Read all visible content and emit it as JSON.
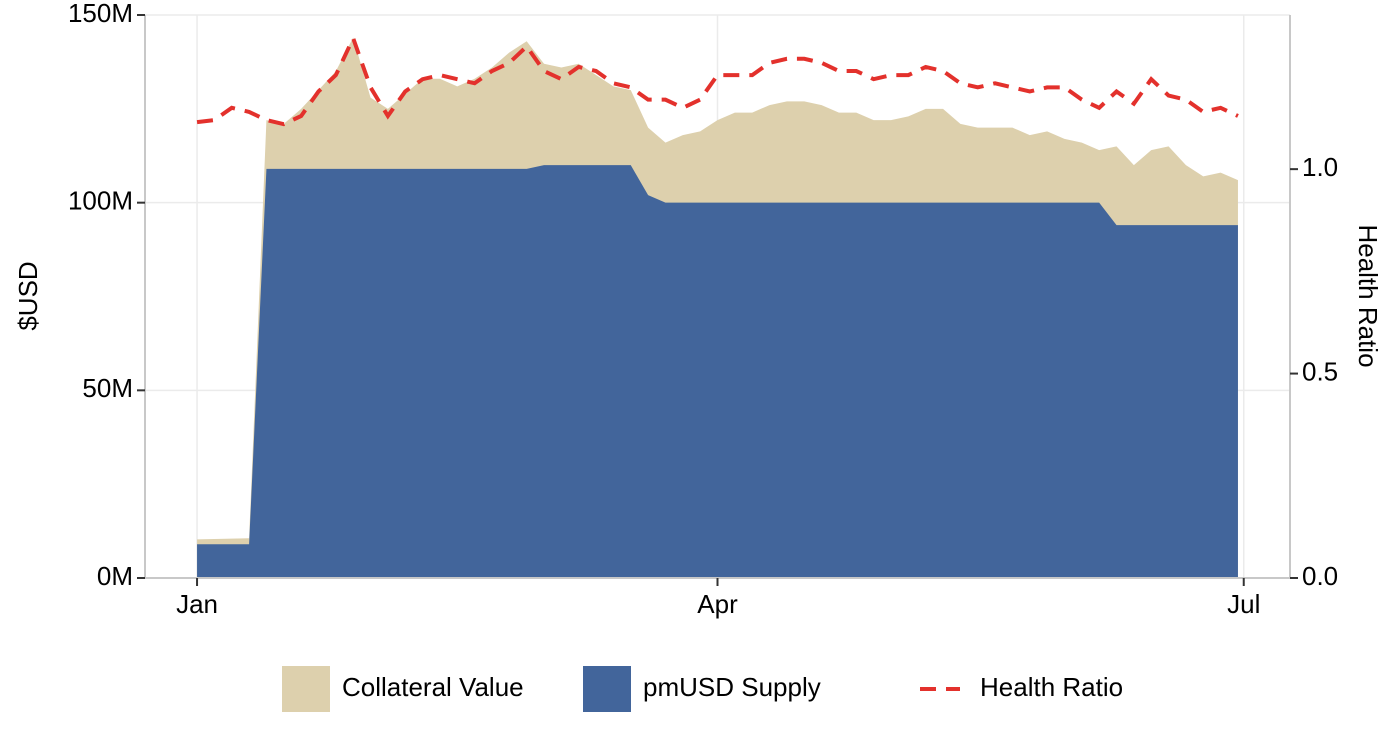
{
  "chart_data": {
    "type": "area",
    "y_label": "$USD",
    "y2_label": "Health Ratio",
    "x": [
      0,
      3,
      6,
      9,
      12,
      15,
      18,
      21,
      24,
      27,
      30,
      33,
      36,
      39,
      42,
      45,
      48,
      51,
      54,
      57,
      60,
      63,
      66,
      69,
      72,
      75,
      78,
      81,
      84,
      87,
      90,
      93,
      96,
      99,
      102,
      105,
      108,
      111,
      114,
      117,
      120,
      123,
      126,
      129,
      132,
      135,
      138,
      141,
      144,
      147,
      150,
      153,
      156,
      159,
      162,
      165,
      168,
      171,
      174,
      177,
      180
    ],
    "xlim": [
      -9,
      189
    ],
    "xticks": [
      {
        "value": 0,
        "label": "Jan"
      },
      {
        "value": 90,
        "label": "Apr"
      },
      {
        "value": 181,
        "label": "Jul"
      }
    ],
    "ylim": [
      0,
      150000000
    ],
    "yticks": [
      {
        "value": 0,
        "label": "0M"
      },
      {
        "value": 50000000,
        "label": "50M"
      },
      {
        "value": 100000000,
        "label": "100M"
      },
      {
        "value": 150000000,
        "label": "150M"
      }
    ],
    "y2lim": [
      0,
      1.377
    ],
    "y2ticks": [
      {
        "value": 0,
        "label": "0.0"
      },
      0.5,
      {
        "value": 1,
        "label": "1.0"
      }
    ],
    "grid": true,
    "legend": "bottom",
    "series": [
      {
        "name": "Collateral Value",
        "type": "area",
        "color": "#ddd0ad",
        "values": [
          10300000,
          10400000,
          10500000,
          10600000,
          122000000,
          121000000,
          125000000,
          130000000,
          135000000,
          144000000,
          128000000,
          125000000,
          129000000,
          133000000,
          133000000,
          131000000,
          133000000,
          136000000,
          140000000,
          143000000,
          137000000,
          136000000,
          137000000,
          134000000,
          131000000,
          130000000,
          120000000,
          116000000,
          118000000,
          119000000,
          122000000,
          124000000,
          124000000,
          126000000,
          127000000,
          127000000,
          126000000,
          124000000,
          124000000,
          122000000,
          122000000,
          123000000,
          125000000,
          125000000,
          121000000,
          120000000,
          120000000,
          120000000,
          118000000,
          119000000,
          117000000,
          116000000,
          114000000,
          115000000,
          110000000,
          114000000,
          115000000,
          110000000,
          107000000,
          108000000,
          106000000
        ]
      },
      {
        "name": "pmUSD Supply",
        "type": "area",
        "color": "#42659b",
        "values": [
          9000000,
          9000000,
          9000000,
          9000000,
          109000000,
          109000000,
          109000000,
          109000000,
          109000000,
          109000000,
          109000000,
          109000000,
          109000000,
          109000000,
          109000000,
          109000000,
          109000000,
          109000000,
          109000000,
          109000000,
          110000000,
          110000000,
          110000000,
          110000000,
          110000000,
          110000000,
          102000000,
          100000000,
          100000000,
          100000000,
          100000000,
          100000000,
          100000000,
          100000000,
          100000000,
          100000000,
          100000000,
          100000000,
          100000000,
          100000000,
          100000000,
          100000000,
          100000000,
          100000000,
          100000000,
          100000000,
          100000000,
          100000000,
          100000000,
          100000000,
          100000000,
          100000000,
          100000000,
          94000000,
          94000000,
          94000000,
          94000000,
          94000000,
          94000000,
          94000000,
          94000000
        ]
      },
      {
        "name": "Health Ratio",
        "type": "line",
        "axis": "y2",
        "dashed": true,
        "color": "#e3312c",
        "values": [
          1.115,
          1.12,
          1.15,
          1.14,
          1.12,
          1.11,
          1.13,
          1.19,
          1.23,
          1.32,
          1.2,
          1.13,
          1.19,
          1.22,
          1.23,
          1.22,
          1.21,
          1.24,
          1.26,
          1.3,
          1.24,
          1.22,
          1.25,
          1.24,
          1.21,
          1.2,
          1.17,
          1.17,
          1.15,
          1.17,
          1.23,
          1.23,
          1.23,
          1.26,
          1.27,
          1.27,
          1.26,
          1.24,
          1.24,
          1.22,
          1.23,
          1.23,
          1.25,
          1.24,
          1.21,
          1.2,
          1.21,
          1.2,
          1.19,
          1.2,
          1.2,
          1.17,
          1.15,
          1.19,
          1.16,
          1.22,
          1.18,
          1.17,
          1.14,
          1.15,
          1.13
        ]
      }
    ]
  }
}
